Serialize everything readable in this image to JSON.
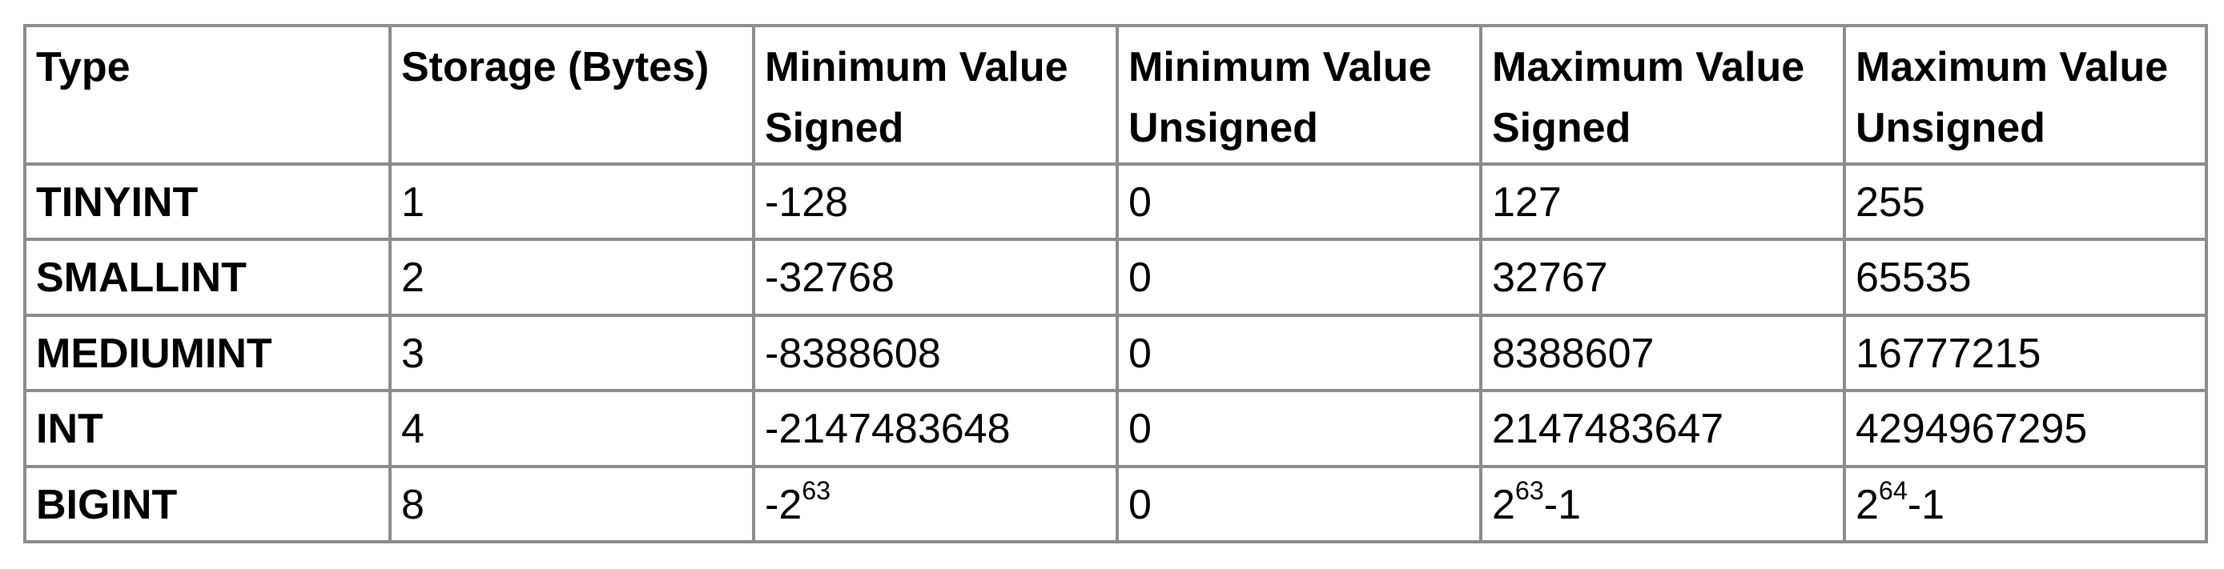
{
  "table": {
    "headers": [
      {
        "line1": "Type",
        "line2": ""
      },
      {
        "line1": "Storage (Bytes)",
        "line2": ""
      },
      {
        "line1": "Minimum Value",
        "line2": "Signed"
      },
      {
        "line1": "Minimum Value",
        "line2": "Unsigned"
      },
      {
        "line1": "Maximum Value",
        "line2": "Signed"
      },
      {
        "line1": "Maximum Value",
        "line2": "Unsigned"
      }
    ],
    "rows": [
      {
        "type": "TINYINT",
        "storage": "1",
        "min_signed": {
          "base": "-128",
          "exp": "",
          "suffix": ""
        },
        "min_unsigned": "0",
        "max_signed": {
          "base": "127",
          "exp": "",
          "suffix": ""
        },
        "max_unsigned": {
          "base": "255",
          "exp": "",
          "suffix": ""
        }
      },
      {
        "type": "SMALLINT",
        "storage": "2",
        "min_signed": {
          "base": "-32768",
          "exp": "",
          "suffix": ""
        },
        "min_unsigned": "0",
        "max_signed": {
          "base": "32767",
          "exp": "",
          "suffix": ""
        },
        "max_unsigned": {
          "base": "65535",
          "exp": "",
          "suffix": ""
        }
      },
      {
        "type": "MEDIUMINT",
        "storage": "3",
        "min_signed": {
          "base": "-8388608",
          "exp": "",
          "suffix": ""
        },
        "min_unsigned": "0",
        "max_signed": {
          "base": "8388607",
          "exp": "",
          "suffix": ""
        },
        "max_unsigned": {
          "base": "16777215",
          "exp": "",
          "suffix": ""
        }
      },
      {
        "type": "INT",
        "storage": "4",
        "min_signed": {
          "base": "-2147483648",
          "exp": "",
          "suffix": ""
        },
        "min_unsigned": "0",
        "max_signed": {
          "base": "2147483647",
          "exp": "",
          "suffix": ""
        },
        "max_unsigned": {
          "base": "4294967295",
          "exp": "",
          "suffix": ""
        }
      },
      {
        "type": "BIGINT",
        "storage": "8",
        "min_signed": {
          "base": "-2",
          "exp": "63",
          "suffix": ""
        },
        "min_unsigned": "0",
        "max_signed": {
          "base": "2",
          "exp": "63",
          "suffix": "-1"
        },
        "max_unsigned": {
          "base": "2",
          "exp": "64",
          "suffix": "-1"
        }
      }
    ]
  },
  "colors": {
    "border": "#8c8c8c",
    "text": "#000000",
    "background": "#ffffff"
  }
}
